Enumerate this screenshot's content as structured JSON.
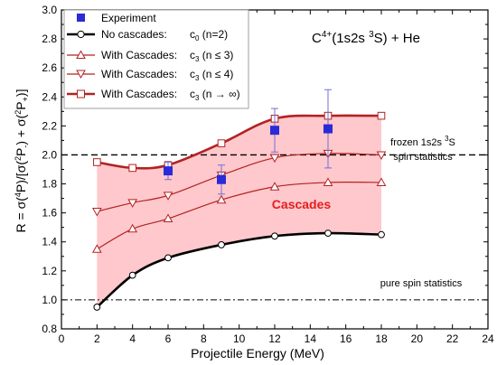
{
  "chart_data": {
    "type": "line",
    "title": "C4+(1s2s 3S) + He",
    "title_parts": {
      "ion": "C",
      "charge": "4+",
      "state_pre": "(1s2s ",
      "mult": "3",
      "state_post": "S) + He"
    },
    "xlabel": "Projectile Energy (MeV)",
    "ylabel": "R = σ(4P)/[σ(2P-) + σ(2P+)]",
    "ylabel_parts": {
      "p1": "R = σ(",
      "s1": "4",
      "p2": "P)/[σ(",
      "s2": "2",
      "p3": "P",
      "sub1": "-",
      "p4": ") + σ(",
      "s3": "2",
      "p5": "P",
      "sub2": "+",
      "p6": ")]"
    },
    "xlim": [
      0,
      24
    ],
    "ylim": [
      0.8,
      3.0
    ],
    "xticks": [
      0,
      2,
      4,
      6,
      8,
      10,
      12,
      14,
      16,
      18,
      20,
      22,
      24
    ],
    "yticks": [
      0.8,
      1.0,
      1.2,
      1.4,
      1.6,
      1.8,
      2.0,
      2.2,
      2.4,
      2.6,
      2.8,
      3.0
    ],
    "yticks_labels": [
      "0.8",
      "1.0",
      "1.2",
      "1.4",
      "1.6",
      "1.8",
      "2.0",
      "2.2",
      "2.4",
      "2.6",
      "2.8",
      "3.0"
    ],
    "legend_position": "top-left",
    "series": [
      {
        "name": "Experiment",
        "kind": "markers",
        "marker": "filled-square",
        "color": "#2a2ad6",
        "x": [
          6,
          9,
          12,
          15
        ],
        "y": [
          1.89,
          1.83,
          2.17,
          2.18
        ],
        "err": [
          0.06,
          0.1,
          0.15,
          0.27
        ]
      },
      {
        "name": "No cascades:",
        "legend_expr": {
          "base": "c",
          "sub": "0",
          "rest": " (n=2)"
        },
        "kind": "line",
        "marker": "circle",
        "color": "#000000",
        "width": 2.6,
        "x": [
          2,
          4,
          6,
          9,
          12,
          15,
          18
        ],
        "y": [
          0.95,
          1.17,
          1.29,
          1.38,
          1.44,
          1.46,
          1.45
        ]
      },
      {
        "name": "With Cascades:",
        "legend_expr": {
          "base": "c",
          "sub": "3",
          "rest": " (n ≤ 3)"
        },
        "kind": "line",
        "marker": "triangle-up",
        "color": "#b22222",
        "width": 1.2,
        "x": [
          2,
          4,
          6,
          9,
          12,
          15,
          18
        ],
        "y": [
          1.35,
          1.49,
          1.56,
          1.69,
          1.78,
          1.81,
          1.81
        ]
      },
      {
        "name": "With Cascades:",
        "legend_expr": {
          "base": "c",
          "sub": "3",
          "rest": " (n ≤ 4)"
        },
        "kind": "line",
        "marker": "triangle-down",
        "color": "#b22222",
        "width": 1.2,
        "x": [
          2,
          4,
          6,
          9,
          12,
          15,
          18
        ],
        "y": [
          1.61,
          1.67,
          1.72,
          1.86,
          1.98,
          2.01,
          2.0
        ]
      },
      {
        "name": "With Cascades:",
        "legend_expr": {
          "base": "c",
          "sub": "3",
          "rest": " (n → ∞)"
        },
        "kind": "line",
        "marker": "square",
        "color": "#b22222",
        "width": 2.6,
        "x": [
          2,
          4,
          6,
          9,
          12,
          15,
          18
        ],
        "y": [
          1.95,
          1.91,
          1.93,
          2.08,
          2.25,
          2.27,
          2.27
        ]
      }
    ],
    "shaded_region": {
      "between": [
        "No cascades:",
        "With Cascades: (n → ∞)"
      ],
      "color": "#ffc8cc",
      "label": "Cascades",
      "label_color": "#e02020",
      "label_at": [
        13.5,
        1.63
      ]
    },
    "reference_lines": [
      {
        "y": 2.0,
        "style": "dashed",
        "label_parts": {
          "pre": "frozen 1s2s ",
          "sup": "3",
          "post": "S"
        },
        "label2": "spin statistics"
      },
      {
        "y": 1.0,
        "style": "dash-dot",
        "label": "pure spin statistics"
      }
    ]
  }
}
